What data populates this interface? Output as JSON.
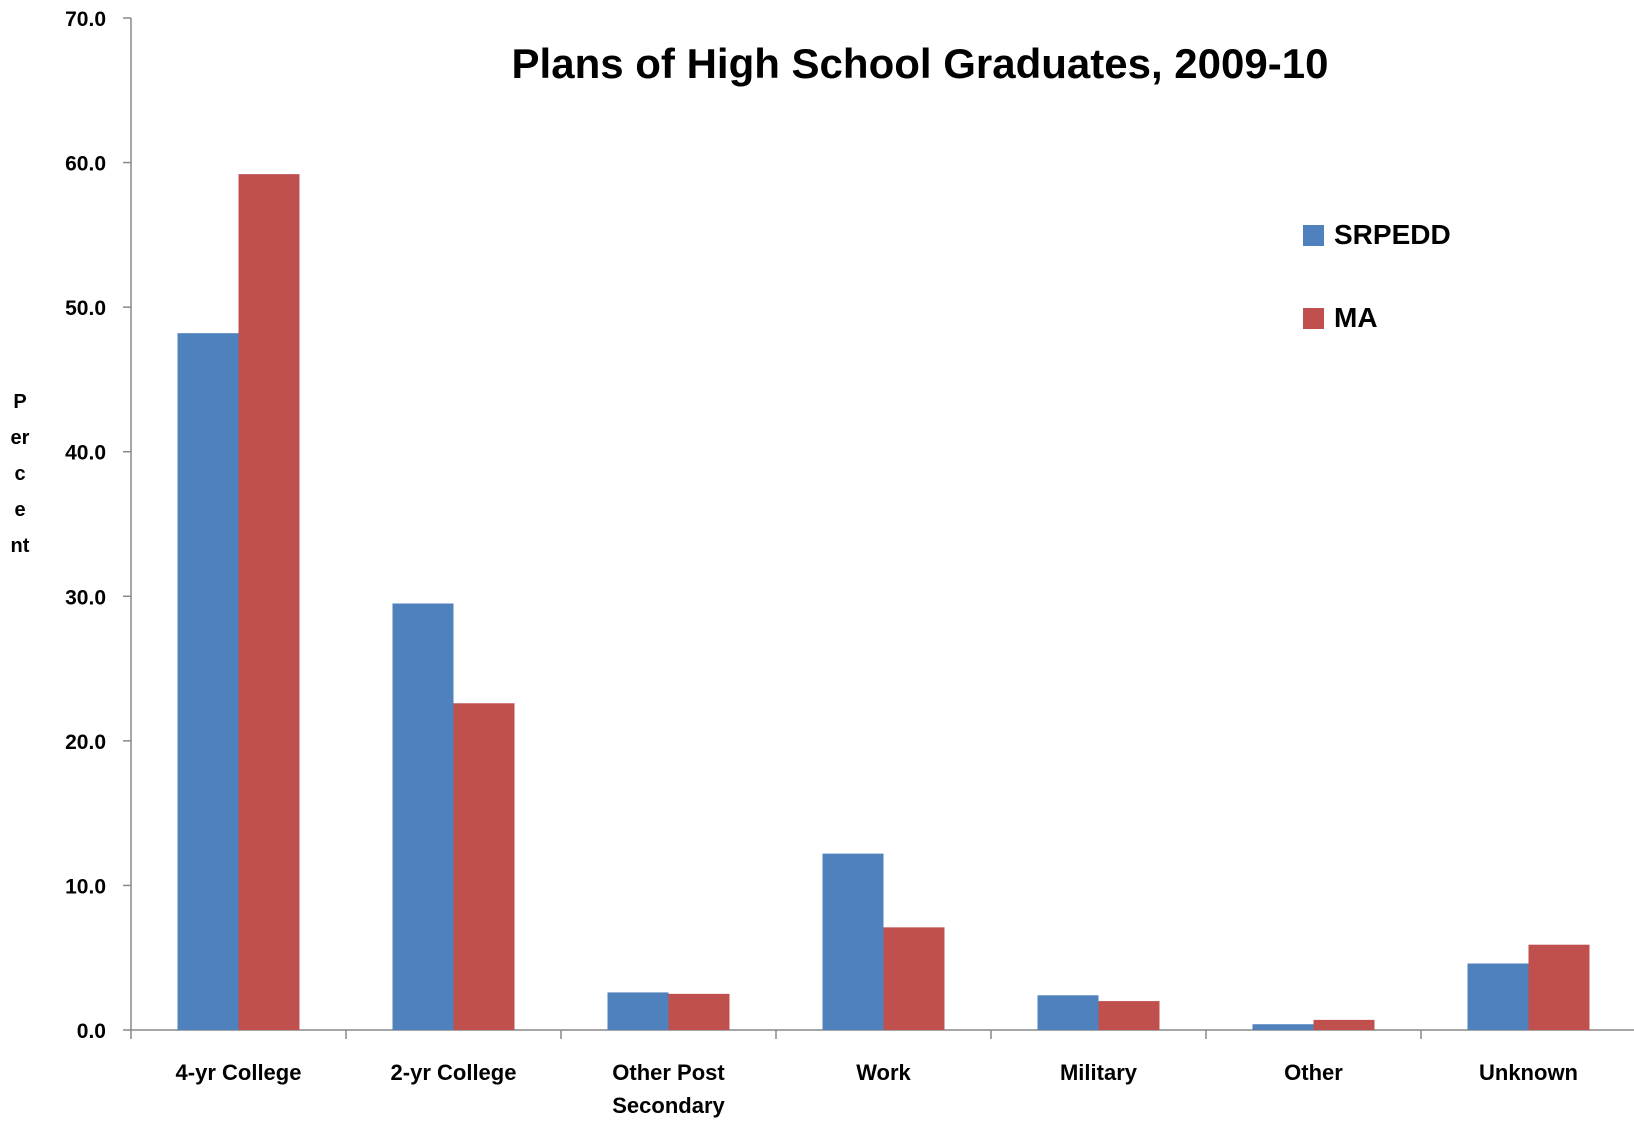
{
  "chart_data": {
    "type": "bar",
    "title": "Plans of High School Graduates, 2009-10",
    "ylabel": "Percent",
    "xlabel": "",
    "ylim": [
      0,
      70
    ],
    "yticks": [
      "0.0",
      "10.0",
      "20.0",
      "30.0",
      "40.0",
      "50.0",
      "60.0",
      "70.0"
    ],
    "categories": [
      [
        "4-yr College"
      ],
      [
        "2-yr College"
      ],
      [
        "Other Post",
        "Secondary"
      ],
      [
        "Work"
      ],
      [
        "Military"
      ],
      [
        "Other"
      ],
      [
        "Unknown"
      ]
    ],
    "series": [
      {
        "name": "SRPEDD",
        "color": "#4F81BD",
        "values": [
          48.2,
          29.5,
          2.6,
          12.2,
          2.4,
          0.4,
          4.6
        ]
      },
      {
        "name": "MA",
        "color": "#C0504D",
        "values": [
          59.2,
          22.6,
          2.5,
          7.1,
          2.0,
          0.7,
          5.9
        ]
      }
    ],
    "grid": false,
    "legend_position": "top-right"
  }
}
